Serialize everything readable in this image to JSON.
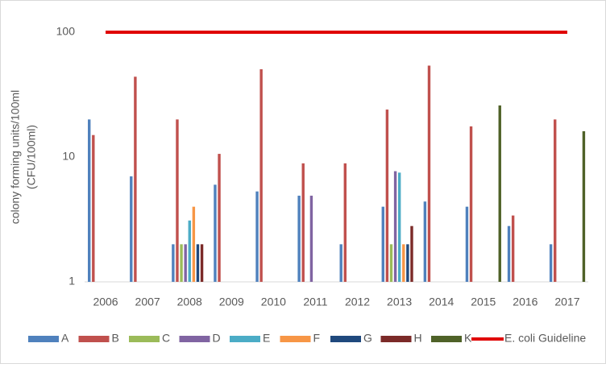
{
  "chart_data": {
    "type": "bar",
    "y_label": [
      "colony forming units/100ml",
      "(CFU/100ml)"
    ],
    "categories": [
      "2006",
      "2007",
      "2008",
      "2009",
      "2010",
      "2011",
      "2012",
      "2013",
      "2014",
      "2015",
      "2016",
      "2017"
    ],
    "series": [
      {
        "name": "A",
        "color": "#4f81bd",
        "values": [
          20,
          7,
          2,
          6,
          5.3,
          4.9,
          2,
          4,
          4.4,
          4,
          2.8,
          2
        ]
      },
      {
        "name": "B",
        "color": "#c0504d",
        "values": [
          15,
          44,
          20,
          10.6,
          50.5,
          8.9,
          8.9,
          24,
          54,
          17.6,
          3.4,
          20
        ]
      },
      {
        "name": "C",
        "color": "#9bbb59",
        "values": [
          null,
          null,
          2,
          null,
          null,
          null,
          null,
          2,
          null,
          null,
          null,
          null
        ]
      },
      {
        "name": "D",
        "color": "#8064a2",
        "values": [
          null,
          null,
          2,
          null,
          null,
          4.9,
          null,
          7.7,
          null,
          null,
          null,
          null
        ]
      },
      {
        "name": "E",
        "color": "#4bacc6",
        "values": [
          null,
          null,
          3.1,
          null,
          null,
          null,
          null,
          7.5,
          null,
          null,
          null,
          null
        ]
      },
      {
        "name": "F",
        "color": "#f79646",
        "values": [
          null,
          null,
          4,
          null,
          null,
          null,
          null,
          2,
          null,
          null,
          null,
          null
        ]
      },
      {
        "name": "G",
        "color": "#1f497d",
        "values": [
          null,
          null,
          2,
          null,
          null,
          null,
          null,
          2,
          null,
          null,
          null,
          null
        ]
      },
      {
        "name": "H",
        "color": "#7b2a28",
        "values": [
          null,
          null,
          2,
          null,
          null,
          null,
          null,
          2.8,
          null,
          null,
          null,
          null
        ]
      },
      {
        "name": "K",
        "color": "#4f6228",
        "values": [
          null,
          null,
          null,
          null,
          null,
          null,
          null,
          null,
          null,
          25.9,
          null,
          16.1
        ]
      },
      {
        "name": "E. coli Guideline",
        "type": "line",
        "color": "#e00000",
        "values": [
          100,
          100,
          100,
          100,
          100,
          100,
          100,
          100,
          100,
          100,
          100,
          100
        ]
      }
    ],
    "log_scale": true,
    "ylim": [
      1,
      100
    ],
    "yticks": [
      1,
      10,
      100
    ],
    "legend": "bottom"
  }
}
